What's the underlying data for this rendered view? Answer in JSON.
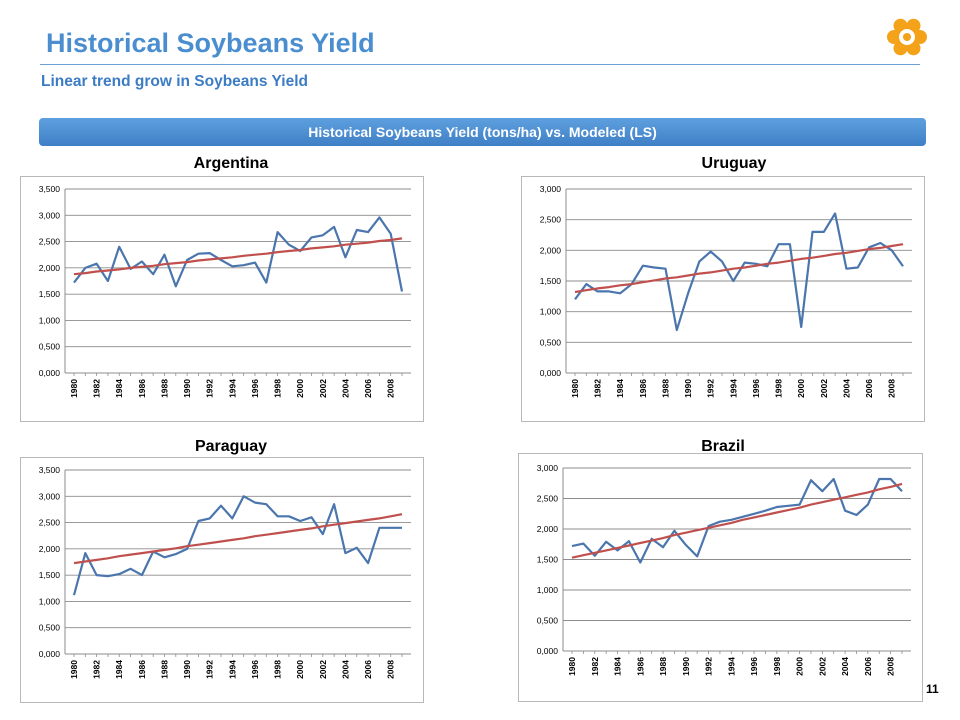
{
  "header": {
    "title": "Historical Soybeans Yield",
    "subtitle": "Linear trend grow in Soybeans Yield",
    "banner": "Historical Soybeans Yield (tons/ha) vs. Modeled (LS)"
  },
  "page_number": "11",
  "colors": {
    "actual": "#4a76ad",
    "trend": "#c0504d",
    "accent": "#4a8ed0",
    "logo": "#f5a21b"
  },
  "chart_data": [
    {
      "type": "line",
      "title": "Argentina",
      "ylim": [
        0,
        3.5
      ],
      "yticks": [
        "0,000",
        "0,500",
        "1,000",
        "1,500",
        "2,000",
        "2,500",
        "3,000",
        "3,500"
      ],
      "x": [
        "1980",
        "1981",
        "1982",
        "1983",
        "1984",
        "1985",
        "1986",
        "1987",
        "1988",
        "1989",
        "1990",
        "1991",
        "1992",
        "1993",
        "1994",
        "1995",
        "1996",
        "1997",
        "1998",
        "1999",
        "2000",
        "2001",
        "2002",
        "2003",
        "2004",
        "2005",
        "2006",
        "2007",
        "2008",
        "2009"
      ],
      "xticks": [
        "1980",
        "1982",
        "1984",
        "1986",
        "1988",
        "1990",
        "1992",
        "1994",
        "1996",
        "1998",
        "2000",
        "2002",
        "2004",
        "2006",
        "2008"
      ],
      "series": [
        {
          "values": [
            1.72,
            2.0,
            2.08,
            1.75,
            2.4,
            1.98,
            2.12,
            1.88,
            2.25,
            1.65,
            2.15,
            2.27,
            2.28,
            2.15,
            2.03,
            2.05,
            2.1,
            1.72,
            2.68,
            2.44,
            2.32,
            2.58,
            2.62,
            2.78,
            2.2,
            2.72,
            2.68,
            2.96,
            2.65,
            1.55
          ]
        },
        {
          "values": [
            1.88,
            1.9,
            1.93,
            1.95,
            1.97,
            2.0,
            2.02,
            2.04,
            2.07,
            2.09,
            2.11,
            2.14,
            2.16,
            2.18,
            2.2,
            2.23,
            2.25,
            2.27,
            2.3,
            2.32,
            2.34,
            2.37,
            2.39,
            2.41,
            2.44,
            2.46,
            2.48,
            2.51,
            2.53,
            2.56
          ]
        }
      ],
      "grid": true
    },
    {
      "type": "line",
      "title": "Uruguay",
      "ylim": [
        0,
        3.0
      ],
      "yticks": [
        "0,000",
        "0,500",
        "1,000",
        "1,500",
        "2,000",
        "2,500",
        "3,000"
      ],
      "x": [
        "1980",
        "1981",
        "1982",
        "1983",
        "1984",
        "1985",
        "1986",
        "1987",
        "1988",
        "1989",
        "1990",
        "1991",
        "1992",
        "1993",
        "1994",
        "1995",
        "1996",
        "1997",
        "1998",
        "1999",
        "2000",
        "2001",
        "2002",
        "2003",
        "2004",
        "2005",
        "2006",
        "2007",
        "2008",
        "2009"
      ],
      "xticks": [
        "1980",
        "1982",
        "1984",
        "1986",
        "1988",
        "1990",
        "1992",
        "1994",
        "1996",
        "1998",
        "2000",
        "2002",
        "2004",
        "2006",
        "2008"
      ],
      "series": [
        {
          "values": [
            1.2,
            1.45,
            1.33,
            1.33,
            1.3,
            1.45,
            1.75,
            1.72,
            1.7,
            0.7,
            1.3,
            1.82,
            1.98,
            1.82,
            1.5,
            1.8,
            1.78,
            1.74,
            2.1,
            2.1,
            0.75,
            2.3,
            2.3,
            2.6,
            1.7,
            1.72,
            2.05,
            2.12,
            2.0,
            1.74
          ]
        },
        {
          "values": [
            1.32,
            1.35,
            1.38,
            1.4,
            1.43,
            1.45,
            1.48,
            1.51,
            1.54,
            1.56,
            1.59,
            1.62,
            1.64,
            1.67,
            1.7,
            1.72,
            1.75,
            1.78,
            1.8,
            1.83,
            1.86,
            1.88,
            1.91,
            1.94,
            1.96,
            1.99,
            2.02,
            2.04,
            2.07,
            2.1
          ]
        }
      ],
      "grid": true
    },
    {
      "type": "line",
      "title": "Paraguay",
      "ylim": [
        0,
        3.5
      ],
      "yticks": [
        "0,000",
        "0,500",
        "1,000",
        "1,500",
        "2,000",
        "2,500",
        "3,000",
        "3,500"
      ],
      "x": [
        "1980",
        "1981",
        "1982",
        "1983",
        "1984",
        "1985",
        "1986",
        "1987",
        "1988",
        "1989",
        "1990",
        "1991",
        "1992",
        "1993",
        "1994",
        "1995",
        "1996",
        "1997",
        "1998",
        "1999",
        "2000",
        "2001",
        "2002",
        "2003",
        "2004",
        "2005",
        "2006",
        "2007",
        "2008",
        "2009"
      ],
      "xticks": [
        "1980",
        "1982",
        "1984",
        "1986",
        "1988",
        "1990",
        "1992",
        "1994",
        "1996",
        "1998",
        "2000",
        "2002",
        "2004",
        "2006",
        "2008"
      ],
      "series": [
        {
          "values": [
            1.12,
            1.92,
            1.5,
            1.48,
            1.52,
            1.62,
            1.5,
            1.95,
            1.84,
            1.9,
            2.0,
            2.53,
            2.58,
            2.82,
            2.58,
            3.0,
            2.88,
            2.85,
            2.62,
            2.62,
            2.53,
            2.6,
            2.28,
            2.85,
            1.92,
            2.02,
            1.73,
            2.4,
            2.4,
            2.4
          ]
        },
        {
          "values": [
            1.73,
            1.76,
            1.79,
            1.82,
            1.86,
            1.89,
            1.92,
            1.95,
            1.98,
            2.01,
            2.05,
            2.08,
            2.11,
            2.14,
            2.17,
            2.2,
            2.24,
            2.27,
            2.3,
            2.33,
            2.36,
            2.39,
            2.43,
            2.46,
            2.49,
            2.52,
            2.55,
            2.58,
            2.62,
            2.66
          ]
        }
      ],
      "grid": true
    },
    {
      "type": "line",
      "title": "Brazil",
      "ylim": [
        0,
        3.0
      ],
      "yticks": [
        "0,000",
        "0,500",
        "1,000",
        "1,500",
        "2,000",
        "2,500",
        "3,000"
      ],
      "x": [
        "1980",
        "1981",
        "1982",
        "1983",
        "1984",
        "1985",
        "1986",
        "1987",
        "1988",
        "1989",
        "1990",
        "1991",
        "1992",
        "1993",
        "1994",
        "1995",
        "1996",
        "1997",
        "1998",
        "1999",
        "2000",
        "2001",
        "2002",
        "2003",
        "2004",
        "2005",
        "2006",
        "2007",
        "2008",
        "2009"
      ],
      "xticks": [
        "1980",
        "1982",
        "1984",
        "1986",
        "1988",
        "1990",
        "1992",
        "1994",
        "1996",
        "1998",
        "2000",
        "2002",
        "2004",
        "2006",
        "2008"
      ],
      "series": [
        {
          "values": [
            1.72,
            1.76,
            1.56,
            1.79,
            1.65,
            1.8,
            1.45,
            1.84,
            1.7,
            1.97,
            1.74,
            1.55,
            2.05,
            2.12,
            2.15,
            2.2,
            2.25,
            2.3,
            2.36,
            2.38,
            2.4,
            2.8,
            2.62,
            2.82,
            2.3,
            2.23,
            2.4,
            2.82,
            2.82,
            2.62
          ]
        },
        {
          "values": [
            1.53,
            1.57,
            1.61,
            1.65,
            1.69,
            1.73,
            1.77,
            1.81,
            1.85,
            1.9,
            1.94,
            1.98,
            2.02,
            2.06,
            2.1,
            2.15,
            2.19,
            2.23,
            2.27,
            2.31,
            2.35,
            2.4,
            2.44,
            2.48,
            2.52,
            2.56,
            2.6,
            2.65,
            2.69,
            2.74
          ]
        }
      ],
      "grid": true
    }
  ]
}
